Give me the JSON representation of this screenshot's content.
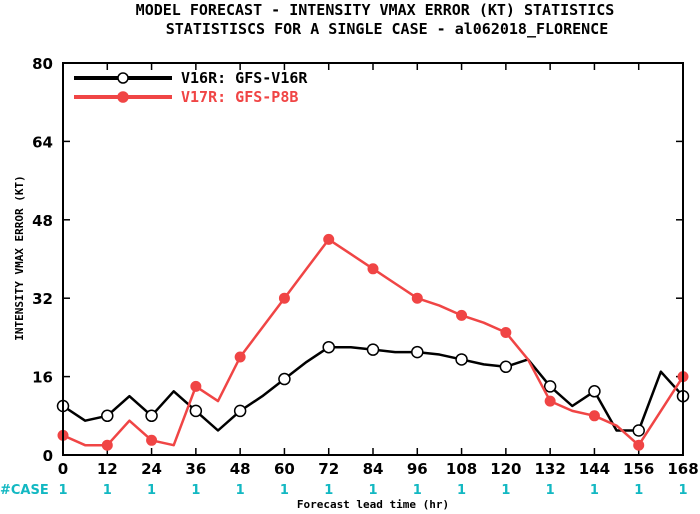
{
  "chart_data": {
    "type": "line",
    "title": "MODEL FORECAST - INTENSITY VMAX ERROR (KT) STATISTICS",
    "subtitle": "STATISTISCS FOR A SINGLE CASE - al062018_FLORENCE",
    "xlabel": "Forecast lead time (hr)",
    "ylabel": "INTENSITY VMAX ERROR (KT)",
    "xlim": [
      0,
      168
    ],
    "ylim": [
      0,
      80
    ],
    "x_ticks": [
      0,
      12,
      24,
      36,
      48,
      60,
      72,
      84,
      96,
      108,
      120,
      132,
      144,
      156,
      168
    ],
    "y_ticks": [
      0,
      16,
      32,
      48,
      64,
      80
    ],
    "grid": false,
    "legend_position": "top-left",
    "series": [
      {
        "name": "V16R: GFS-V16R",
        "color": "#000000",
        "marker": "open-circle",
        "x": [
          0,
          6,
          12,
          18,
          24,
          30,
          36,
          42,
          48,
          54,
          60,
          66,
          72,
          78,
          84,
          90,
          96,
          102,
          108,
          114,
          120,
          126,
          132,
          138,
          144,
          150,
          156,
          162,
          168
        ],
        "y": [
          10,
          7,
          8,
          12,
          8,
          13,
          9,
          5,
          9,
          12,
          15.5,
          19,
          22,
          22,
          21.5,
          21,
          21,
          20.5,
          19.5,
          18.5,
          18,
          19.5,
          14,
          10,
          13,
          5,
          5,
          17,
          12
        ],
        "marker_x": [
          0,
          12,
          24,
          36,
          48,
          60,
          72,
          84,
          96,
          108,
          120,
          132,
          144,
          156,
          168
        ]
      },
      {
        "name": "V17R: GFS-P8B",
        "color": "#f04545",
        "marker": "filled-circle",
        "x": [
          0,
          6,
          12,
          18,
          24,
          30,
          36,
          42,
          48,
          54,
          60,
          66,
          72,
          78,
          84,
          90,
          96,
          102,
          108,
          114,
          120,
          126,
          132,
          138,
          144,
          150,
          156,
          162,
          168
        ],
        "y": [
          4,
          2,
          2,
          7,
          3,
          2,
          14,
          11,
          20,
          26,
          32,
          38,
          44,
          41,
          38,
          35,
          32,
          30.5,
          28.5,
          27,
          25,
          19.5,
          11,
          9,
          8,
          6,
          2,
          9,
          16
        ],
        "marker_x": [
          0,
          12,
          24,
          36,
          48,
          60,
          72,
          84,
          96,
          108,
          120,
          132,
          144,
          156,
          168
        ]
      }
    ],
    "case_counts": {
      "label": "#CASE",
      "color": "#12b8c2",
      "x": [
        0,
        12,
        24,
        36,
        48,
        60,
        72,
        84,
        96,
        108,
        120,
        132,
        144,
        156,
        168
      ],
      "values": [
        "1",
        "1",
        "1",
        "1",
        "1",
        "1",
        "1",
        "1",
        "1",
        "1",
        "1",
        "1",
        "1",
        "1",
        "1"
      ]
    }
  }
}
